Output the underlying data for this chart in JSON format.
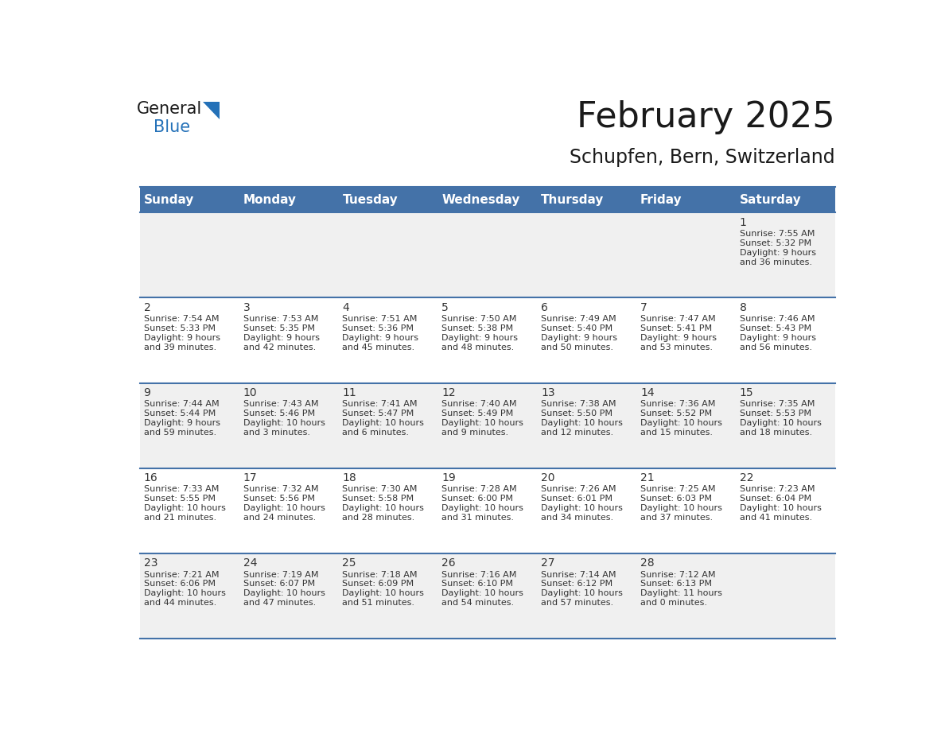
{
  "title": "February 2025",
  "subtitle": "Schupfen, Bern, Switzerland",
  "header_bg_color": "#4472A8",
  "header_text_color": "#FFFFFF",
  "cell_bg_color_odd": "#F0F0F0",
  "cell_bg_color_even": "#FFFFFF",
  "border_color": "#4472A8",
  "text_color": "#333333",
  "day_names": [
    "Sunday",
    "Monday",
    "Tuesday",
    "Wednesday",
    "Thursday",
    "Friday",
    "Saturday"
  ],
  "days": [
    {
      "day": 1,
      "col": 6,
      "row": 0,
      "sunrise": "7:55 AM",
      "sunset": "5:32 PM",
      "daylight": "9 hours and 36 minutes."
    },
    {
      "day": 2,
      "col": 0,
      "row": 1,
      "sunrise": "7:54 AM",
      "sunset": "5:33 PM",
      "daylight": "9 hours and 39 minutes."
    },
    {
      "day": 3,
      "col": 1,
      "row": 1,
      "sunrise": "7:53 AM",
      "sunset": "5:35 PM",
      "daylight": "9 hours and 42 minutes."
    },
    {
      "day": 4,
      "col": 2,
      "row": 1,
      "sunrise": "7:51 AM",
      "sunset": "5:36 PM",
      "daylight": "9 hours and 45 minutes."
    },
    {
      "day": 5,
      "col": 3,
      "row": 1,
      "sunrise": "7:50 AM",
      "sunset": "5:38 PM",
      "daylight": "9 hours and 48 minutes."
    },
    {
      "day": 6,
      "col": 4,
      "row": 1,
      "sunrise": "7:49 AM",
      "sunset": "5:40 PM",
      "daylight": "9 hours and 50 minutes."
    },
    {
      "day": 7,
      "col": 5,
      "row": 1,
      "sunrise": "7:47 AM",
      "sunset": "5:41 PM",
      "daylight": "9 hours and 53 minutes."
    },
    {
      "day": 8,
      "col": 6,
      "row": 1,
      "sunrise": "7:46 AM",
      "sunset": "5:43 PM",
      "daylight": "9 hours and 56 minutes."
    },
    {
      "day": 9,
      "col": 0,
      "row": 2,
      "sunrise": "7:44 AM",
      "sunset": "5:44 PM",
      "daylight": "9 hours and 59 minutes."
    },
    {
      "day": 10,
      "col": 1,
      "row": 2,
      "sunrise": "7:43 AM",
      "sunset": "5:46 PM",
      "daylight": "10 hours and 3 minutes."
    },
    {
      "day": 11,
      "col": 2,
      "row": 2,
      "sunrise": "7:41 AM",
      "sunset": "5:47 PM",
      "daylight": "10 hours and 6 minutes."
    },
    {
      "day": 12,
      "col": 3,
      "row": 2,
      "sunrise": "7:40 AM",
      "sunset": "5:49 PM",
      "daylight": "10 hours and 9 minutes."
    },
    {
      "day": 13,
      "col": 4,
      "row": 2,
      "sunrise": "7:38 AM",
      "sunset": "5:50 PM",
      "daylight": "10 hours and 12 minutes."
    },
    {
      "day": 14,
      "col": 5,
      "row": 2,
      "sunrise": "7:36 AM",
      "sunset": "5:52 PM",
      "daylight": "10 hours and 15 minutes."
    },
    {
      "day": 15,
      "col": 6,
      "row": 2,
      "sunrise": "7:35 AM",
      "sunset": "5:53 PM",
      "daylight": "10 hours and 18 minutes."
    },
    {
      "day": 16,
      "col": 0,
      "row": 3,
      "sunrise": "7:33 AM",
      "sunset": "5:55 PM",
      "daylight": "10 hours and 21 minutes."
    },
    {
      "day": 17,
      "col": 1,
      "row": 3,
      "sunrise": "7:32 AM",
      "sunset": "5:56 PM",
      "daylight": "10 hours and 24 minutes."
    },
    {
      "day": 18,
      "col": 2,
      "row": 3,
      "sunrise": "7:30 AM",
      "sunset": "5:58 PM",
      "daylight": "10 hours and 28 minutes."
    },
    {
      "day": 19,
      "col": 3,
      "row": 3,
      "sunrise": "7:28 AM",
      "sunset": "6:00 PM",
      "daylight": "10 hours and 31 minutes."
    },
    {
      "day": 20,
      "col": 4,
      "row": 3,
      "sunrise": "7:26 AM",
      "sunset": "6:01 PM",
      "daylight": "10 hours and 34 minutes."
    },
    {
      "day": 21,
      "col": 5,
      "row": 3,
      "sunrise": "7:25 AM",
      "sunset": "6:03 PM",
      "daylight": "10 hours and 37 minutes."
    },
    {
      "day": 22,
      "col": 6,
      "row": 3,
      "sunrise": "7:23 AM",
      "sunset": "6:04 PM",
      "daylight": "10 hours and 41 minutes."
    },
    {
      "day": 23,
      "col": 0,
      "row": 4,
      "sunrise": "7:21 AM",
      "sunset": "6:06 PM",
      "daylight": "10 hours and 44 minutes."
    },
    {
      "day": 24,
      "col": 1,
      "row": 4,
      "sunrise": "7:19 AM",
      "sunset": "6:07 PM",
      "daylight": "10 hours and 47 minutes."
    },
    {
      "day": 25,
      "col": 2,
      "row": 4,
      "sunrise": "7:18 AM",
      "sunset": "6:09 PM",
      "daylight": "10 hours and 51 minutes."
    },
    {
      "day": 26,
      "col": 3,
      "row": 4,
      "sunrise": "7:16 AM",
      "sunset": "6:10 PM",
      "daylight": "10 hours and 54 minutes."
    },
    {
      "day": 27,
      "col": 4,
      "row": 4,
      "sunrise": "7:14 AM",
      "sunset": "6:12 PM",
      "daylight": "10 hours and 57 minutes."
    },
    {
      "day": 28,
      "col": 5,
      "row": 4,
      "sunrise": "7:12 AM",
      "sunset": "6:13 PM",
      "daylight": "11 hours and 0 minutes."
    }
  ],
  "num_rows": 5,
  "num_cols": 7,
  "logo_color_general": "#1a1a1a",
  "logo_color_blue": "#2471B8",
  "logo_triangle_color": "#2471B8",
  "title_fontsize": 32,
  "subtitle_fontsize": 17,
  "header_fontsize": 11,
  "day_num_fontsize": 10,
  "cell_text_fontsize": 8
}
